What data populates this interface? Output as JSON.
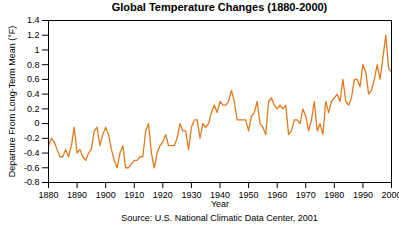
{
  "chart_data": {
    "type": "line",
    "title": "Global Temperature Changes (1880-2000)",
    "x_label": "Year",
    "y_label": "Departure From Long-Term Mean (°F)",
    "caption": "Source: U.S. National Climatic Data Center, 2001",
    "color": "#e07b20",
    "grid": false,
    "xlim": [
      1880,
      2000
    ],
    "xticks": [
      1880,
      1890,
      1900,
      1910,
      1920,
      1930,
      1940,
      1950,
      1960,
      1970,
      1980,
      1990,
      2000
    ],
    "ylim": [
      -0.8,
      1.4
    ],
    "yticks": [
      -0.8,
      -0.6,
      -0.4,
      -0.2,
      0,
      0.2,
      0.4,
      0.6,
      0.8,
      1,
      1.2,
      1.4
    ],
    "x": [
      1880,
      1881,
      1882,
      1883,
      1884,
      1885,
      1886,
      1887,
      1888,
      1889,
      1890,
      1891,
      1892,
      1893,
      1894,
      1895,
      1896,
      1897,
      1898,
      1899,
      1900,
      1901,
      1902,
      1903,
      1904,
      1905,
      1906,
      1907,
      1908,
      1909,
      1910,
      1911,
      1912,
      1913,
      1914,
      1915,
      1916,
      1917,
      1918,
      1919,
      1920,
      1921,
      1922,
      1923,
      1924,
      1925,
      1926,
      1927,
      1928,
      1929,
      1930,
      1931,
      1932,
      1933,
      1934,
      1935,
      1936,
      1937,
      1938,
      1939,
      1940,
      1941,
      1942,
      1943,
      1944,
      1945,
      1946,
      1947,
      1948,
      1949,
      1950,
      1951,
      1952,
      1953,
      1954,
      1955,
      1956,
      1957,
      1958,
      1959,
      1960,
      1961,
      1962,
      1963,
      1964,
      1965,
      1966,
      1967,
      1968,
      1969,
      1970,
      1971,
      1972,
      1973,
      1974,
      1975,
      1976,
      1977,
      1978,
      1979,
      1980,
      1981,
      1982,
      1983,
      1984,
      1985,
      1986,
      1987,
      1988,
      1989,
      1990,
      1991,
      1992,
      1993,
      1994,
      1995,
      1996,
      1997,
      1998,
      1999,
      2000
    ],
    "values": [
      -0.3,
      -0.2,
      -0.25,
      -0.35,
      -0.45,
      -0.45,
      -0.35,
      -0.45,
      -0.3,
      -0.05,
      -0.4,
      -0.35,
      -0.45,
      -0.5,
      -0.4,
      -0.35,
      -0.1,
      -0.05,
      -0.3,
      -0.15,
      -0.05,
      -0.15,
      -0.35,
      -0.5,
      -0.6,
      -0.4,
      -0.3,
      -0.6,
      -0.6,
      -0.55,
      -0.5,
      -0.5,
      -0.45,
      -0.45,
      -0.1,
      0,
      -0.4,
      -0.6,
      -0.4,
      -0.3,
      -0.25,
      -0.15,
      -0.3,
      -0.3,
      -0.3,
      -0.2,
      0,
      -0.1,
      -0.1,
      -0.35,
      -0.05,
      0.05,
      0.05,
      -0.2,
      0,
      -0.05,
      0,
      0.15,
      0.25,
      0.15,
      0.3,
      0.25,
      0.25,
      0.3,
      0.45,
      0.3,
      0.05,
      0.05,
      0.05,
      0.05,
      -0.1,
      0.1,
      0.15,
      0.3,
      0,
      -0.05,
      -0.15,
      0.3,
      0.35,
      0.25,
      0.2,
      0.25,
      0.2,
      0.25,
      -0.15,
      -0.1,
      0.05,
      0.05,
      0,
      0.2,
      0.1,
      -0.1,
      0.05,
      0.3,
      -0.1,
      0,
      -0.15,
      0.3,
      0.15,
      0.3,
      0.35,
      0.4,
      0.3,
      0.6,
      0.3,
      0.25,
      0.35,
      0.6,
      0.6,
      0.5,
      0.8,
      0.7,
      0.4,
      0.45,
      0.6,
      0.8,
      0.6,
      0.9,
      1.2,
      0.75,
      0.7
    ]
  }
}
